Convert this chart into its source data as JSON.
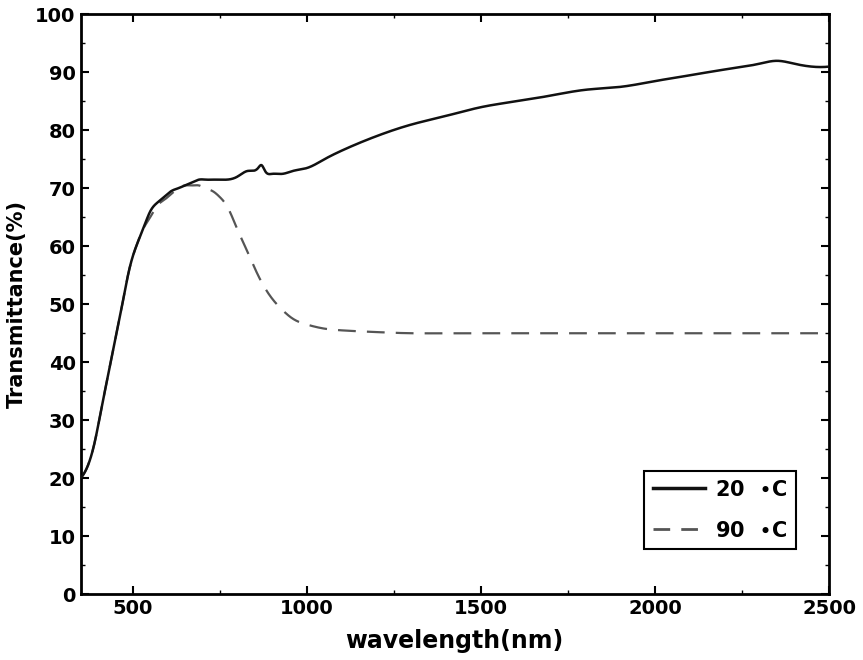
{
  "title": "",
  "xlabel": "wavelength(nm)",
  "ylabel": "Transmittance(%)",
  "xlim": [
    350,
    2500
  ],
  "ylim": [
    0,
    100
  ],
  "xticks": [
    500,
    1000,
    1500,
    2000,
    2500
  ],
  "yticks": [
    0,
    10,
    20,
    30,
    40,
    50,
    60,
    70,
    80,
    90,
    100
  ],
  "legend_20": "20  °C",
  "legend_90": "90  °C",
  "line_color_20": "#111111",
  "line_color_90": "#555555",
  "background_color": "#ffffff",
  "curve_20_x": [
    350,
    370,
    390,
    410,
    430,
    450,
    470,
    490,
    510,
    530,
    550,
    570,
    590,
    610,
    630,
    650,
    670,
    690,
    710,
    730,
    750,
    770,
    800,
    830,
    860,
    870,
    880,
    900,
    930,
    960,
    1000,
    1050,
    1100,
    1200,
    1300,
    1400,
    1500,
    1600,
    1700,
    1800,
    1900,
    2000,
    2100,
    2200,
    2300,
    2350,
    2400,
    2450,
    2500
  ],
  "curve_20_y": [
    20,
    22,
    26,
    32,
    38,
    44,
    50,
    56,
    60,
    63,
    66,
    67.5,
    68.5,
    69.5,
    70,
    70.5,
    71,
    71.5,
    71.5,
    71.5,
    71.5,
    71.5,
    72,
    73,
    73.5,
    74,
    73,
    72.5,
    72.5,
    73,
    73.5,
    75,
    76.5,
    79,
    81,
    82.5,
    84,
    85,
    86,
    87,
    87.5,
    88.5,
    89.5,
    90.5,
    91.5,
    92,
    91.5,
    91,
    91
  ],
  "curve_90_x": [
    350,
    370,
    390,
    410,
    430,
    450,
    470,
    490,
    510,
    530,
    550,
    570,
    590,
    610,
    630,
    650,
    670,
    690,
    710,
    730,
    750,
    770,
    800,
    830,
    860,
    900,
    930,
    960,
    1000,
    1050,
    1100,
    1200,
    1300,
    1400,
    1500,
    1600,
    1700,
    1800,
    1900,
    2000,
    2100,
    2200,
    2300,
    2350,
    2400,
    2450,
    2500
  ],
  "curve_90_y": [
    20,
    22,
    26,
    32,
    38,
    44,
    50,
    56,
    60,
    63,
    65,
    67,
    68,
    69,
    70,
    70.5,
    70.5,
    70.5,
    70,
    69.5,
    68.5,
    67,
    63,
    59,
    55,
    51,
    49,
    47.5,
    46.5,
    45.8,
    45.5,
    45.2,
    45,
    45,
    45,
    45,
    45,
    45,
    45,
    45,
    45,
    45,
    45,
    45,
    45,
    45,
    45
  ]
}
